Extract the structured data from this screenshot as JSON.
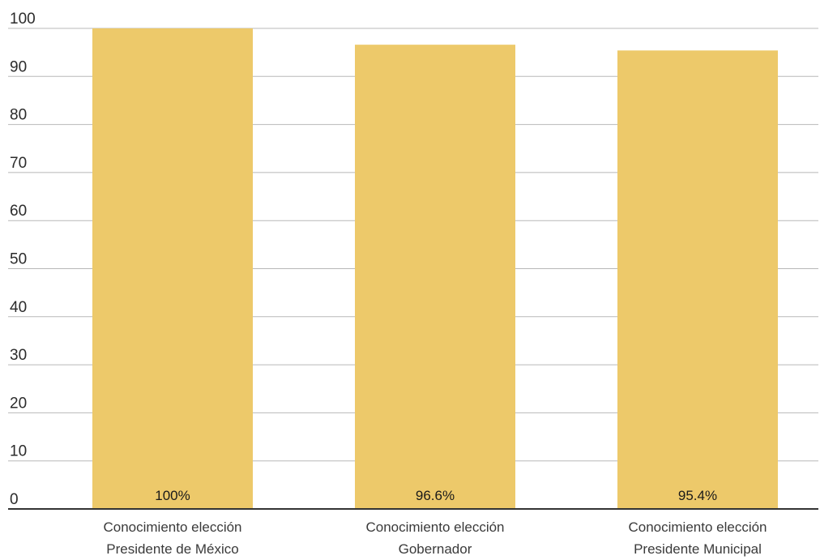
{
  "chart_data": {
    "type": "bar",
    "categories": [
      [
        "Conocimiento elección",
        "Presidente de México"
      ],
      [
        "Conocimiento elección",
        "Gobernador"
      ],
      [
        "Conocimiento elección",
        "Presidente Municipal"
      ]
    ],
    "values": [
      100,
      96.6,
      95.4
    ],
    "data_labels": [
      "100%",
      "96.6%",
      "95.4%"
    ],
    "title": "",
    "xlabel": "",
    "ylabel": "",
    "ylim": [
      0,
      100
    ],
    "yticks": [
      0,
      10,
      20,
      30,
      40,
      50,
      60,
      70,
      80,
      90,
      100
    ],
    "grid": true,
    "legend": "none",
    "colors": {
      "bar": "#EDC96A",
      "grid": "#b8b8b8",
      "axis": "#333333"
    }
  }
}
